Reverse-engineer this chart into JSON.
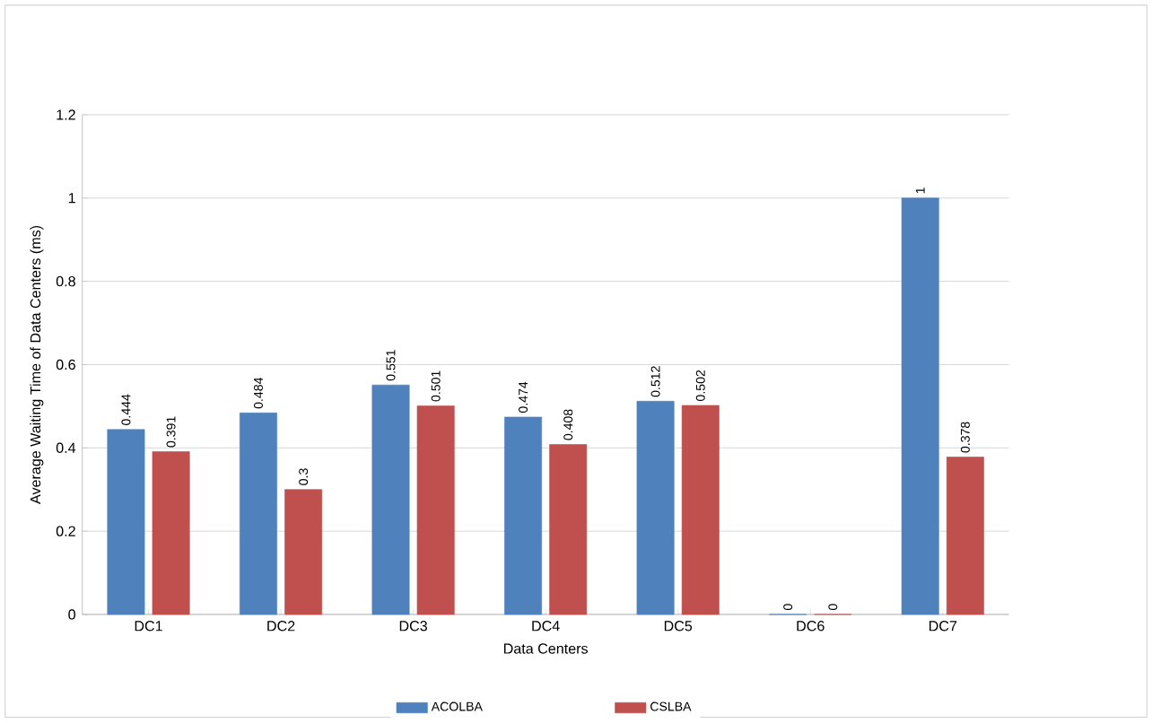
{
  "chart_data": {
    "type": "bar",
    "xlabel": "Data Centers",
    "ylabel": "Average Waiting Time of Data Centers (ms)",
    "categories": [
      "DC1",
      "DC2",
      "DC3",
      "DC4",
      "DC5",
      "DC6",
      "DC7"
    ],
    "series": [
      {
        "name": "ACOLBA",
        "color": "#4f81bd",
        "values": [
          0.444,
          0.484,
          0.551,
          0.474,
          0.512,
          0,
          1
        ]
      },
      {
        "name": "CSLBA",
        "color": "#c0504d",
        "values": [
          0.391,
          0.3,
          0.501,
          0.408,
          0.502,
          0,
          0.378
        ]
      }
    ],
    "ylim": [
      0,
      1.2
    ],
    "yticks": [
      0,
      0.2,
      0.4,
      0.6,
      0.8,
      1,
      1.2
    ],
    "grid": "y",
    "legend": "bottom",
    "data_labels": true
  }
}
